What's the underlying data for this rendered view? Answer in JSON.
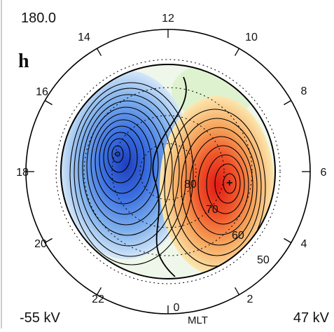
{
  "figure": {
    "panel_label": "h",
    "angle_label": "180.0",
    "min_potential": "-55 kV",
    "max_potential": "47 kV",
    "mlt_axis_label": "MLT",
    "mlt_ticks": [
      "12",
      "10",
      "8",
      "6",
      "4",
      "2",
      "0",
      "22",
      "20",
      "18",
      "16",
      "14"
    ],
    "latitude_labels": [
      "80",
      "70",
      "60",
      "50"
    ],
    "colors": {
      "negative_core": "#1f3fbf",
      "negative_mid": "#4f8fe6",
      "negative_edge": "#cfe3f7",
      "positive_core": "#e11b14",
      "positive_mid": "#f07a3a",
      "positive_edge": "#fbe7a8",
      "background_green": "#dff2cf"
    }
  }
}
